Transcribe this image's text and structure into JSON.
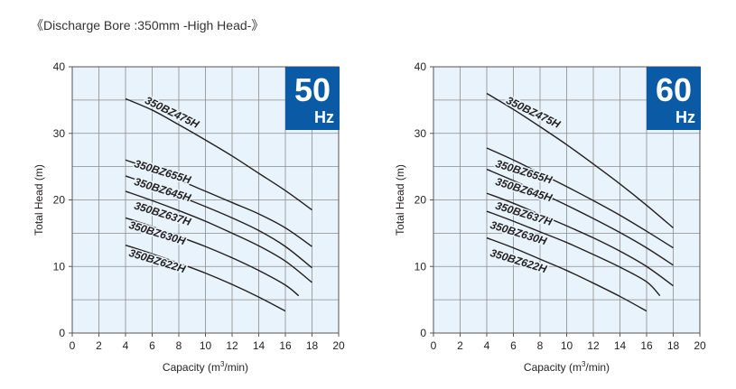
{
  "page_title": "《Discharge Bore :350mm -High Head-》",
  "colors": {
    "plot_bg": "#e8f3fb",
    "grid": "#8c8c8c",
    "badge_bg": "#0a5aa5",
    "badge_text": "#ffffff",
    "curve": "#231f20"
  },
  "chart_data": [
    {
      "type": "line",
      "badge": {
        "freq": "50",
        "unit": "Hz"
      },
      "xlabel": "Capacity (m3/min)",
      "xlabel_parts": {
        "pre": "Capacity (m",
        "sup": "3",
        "post": "/min)"
      },
      "ylabel": "Total Head (m)",
      "xlim": [
        0,
        20
      ],
      "ylim": [
        0,
        40
      ],
      "xticks": [
        "0",
        "2",
        "4",
        "6",
        "8",
        "10",
        "12",
        "14",
        "16",
        "18",
        "20"
      ],
      "yticks": [
        "0",
        "10",
        "20",
        "30",
        "40"
      ],
      "grid": true,
      "series": [
        {
          "name": "350BZ475H",
          "x": [
            4,
            6,
            8,
            10,
            12,
            14,
            16,
            18
          ],
          "y": [
            35.2,
            33.5,
            31.3,
            29.0,
            26.6,
            24.0,
            21.4,
            18.5
          ]
        },
        {
          "name": "350BZ655H",
          "x": [
            4,
            6,
            8,
            10,
            12,
            14,
            16,
            18
          ],
          "y": [
            26.0,
            24.6,
            23.0,
            21.3,
            19.6,
            17.9,
            15.8,
            13.0
          ]
        },
        {
          "name": "350BZ645H",
          "x": [
            4,
            6,
            8,
            10,
            12,
            14,
            16,
            18
          ],
          "y": [
            23.6,
            22.2,
            20.6,
            19.0,
            17.3,
            15.4,
            13.0,
            9.8
          ]
        },
        {
          "name": "350BZ637H",
          "x": [
            4,
            6,
            8,
            10,
            12,
            14,
            16,
            18
          ],
          "y": [
            21.3,
            19.9,
            18.4,
            16.8,
            15.0,
            13.1,
            10.8,
            7.6
          ]
        },
        {
          "name": "350BZ630H",
          "x": [
            4,
            6,
            8,
            10,
            12,
            14,
            16,
            17
          ],
          "y": [
            17.3,
            16.0,
            14.5,
            13.0,
            11.3,
            9.4,
            7.2,
            5.6
          ]
        },
        {
          "name": "350BZ622H",
          "x": [
            4,
            6,
            8,
            10,
            12,
            14,
            16
          ],
          "y": [
            13.2,
            11.9,
            10.5,
            9.0,
            7.3,
            5.4,
            3.3
          ]
        }
      ]
    },
    {
      "type": "line",
      "badge": {
        "freq": "60",
        "unit": "Hz"
      },
      "xlabel": "Capacity (m3/min)",
      "xlabel_parts": {
        "pre": "Capacity (m",
        "sup": "3",
        "post": "/min)"
      },
      "ylabel": "Total Head (m)",
      "xlim": [
        0,
        20
      ],
      "ylim": [
        0,
        40
      ],
      "xticks": [
        "0",
        "2",
        "4",
        "6",
        "8",
        "10",
        "12",
        "14",
        "16",
        "18",
        "20"
      ],
      "yticks": [
        "0",
        "10",
        "20",
        "30",
        "40"
      ],
      "grid": true,
      "series": [
        {
          "name": "350BZ475H",
          "x": [
            4,
            6,
            8,
            10,
            12,
            14,
            16,
            18
          ],
          "y": [
            36.0,
            33.6,
            31.0,
            28.3,
            25.4,
            22.4,
            19.2,
            15.8
          ]
        },
        {
          "name": "350BZ655H",
          "x": [
            4,
            6,
            8,
            10,
            12,
            14,
            16,
            18
          ],
          "y": [
            27.8,
            26.0,
            24.0,
            22.0,
            19.9,
            17.7,
            15.3,
            12.8
          ]
        },
        {
          "name": "350BZ645H",
          "x": [
            4,
            6,
            8,
            10,
            12,
            14,
            16,
            18
          ],
          "y": [
            24.6,
            22.9,
            21.1,
            19.2,
            17.2,
            15.1,
            12.8,
            10.2
          ]
        },
        {
          "name": "350BZ637H",
          "x": [
            4,
            6,
            8,
            10,
            12,
            14,
            16,
            18
          ],
          "y": [
            21.0,
            19.5,
            17.8,
            16.1,
            14.3,
            12.3,
            10.0,
            7.1
          ]
        },
        {
          "name": "350BZ630H",
          "x": [
            4,
            6,
            8,
            10,
            12,
            14,
            16,
            17
          ],
          "y": [
            18.3,
            16.8,
            15.2,
            13.6,
            11.8,
            9.9,
            7.7,
            5.6
          ]
        },
        {
          "name": "350BZ622H",
          "x": [
            4,
            6,
            8,
            10,
            12,
            14,
            16
          ],
          "y": [
            14.3,
            12.8,
            11.1,
            9.4,
            7.5,
            5.5,
            3.3
          ]
        }
      ]
    }
  ]
}
